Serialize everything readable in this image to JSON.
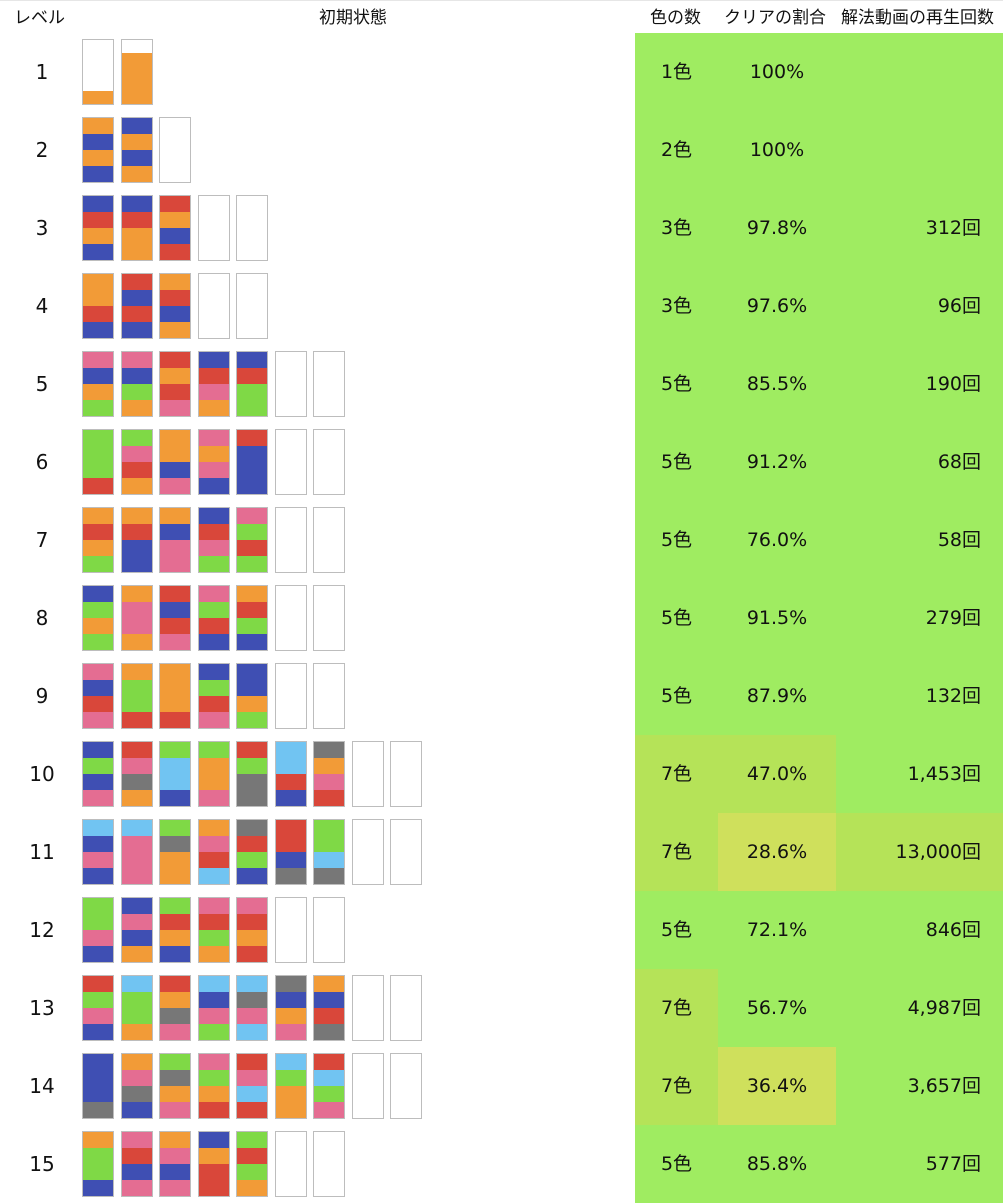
{
  "headers": {
    "level": "レベル",
    "initial_state": "初期状態",
    "colors": "色の数",
    "clear_rate": "クリアの割合",
    "video_plays": "解法動画の再生回数"
  },
  "colors": {
    "O": "#f29b37",
    "B": "#3f4fb3",
    "R": "#d9473a",
    "P": "#e46d92",
    "G": "#7fd946",
    "C": "#71c4f2",
    "Y": "#777777",
    "tube_border": "#bdbdbd",
    "heat_high": "#9fec61",
    "heat_mid": "#b5e358",
    "heat_low": "#cfe05c"
  },
  "rows": [
    {
      "level": "1",
      "colors": "1色",
      "clear_rate": "100%",
      "video_plays": "",
      "tubes": [
        "____O",
        "_OOOO"
      ],
      "heat": [
        "#9fec61",
        "#9fec61",
        "#9fec61"
      ]
    },
    {
      "level": "2",
      "colors": "2色",
      "clear_rate": "100%",
      "video_plays": "",
      "tubes": [
        "OBOB",
        "BOBO",
        ""
      ],
      "heat": [
        "#9fec61",
        "#9fec61",
        "#9fec61"
      ]
    },
    {
      "level": "3",
      "colors": "3色",
      "clear_rate": "97.8%",
      "video_plays": "312回",
      "tubes": [
        "BROB",
        "BROO",
        "ROBR",
        "",
        ""
      ],
      "heat": [
        "#9fec61",
        "#9fec61",
        "#9fec61"
      ]
    },
    {
      "level": "4",
      "colors": "3色",
      "clear_rate": "97.6%",
      "video_plays": "96回",
      "tubes": [
        "OORB",
        "RBRB",
        "ORBO",
        "",
        ""
      ],
      "heat": [
        "#9fec61",
        "#9fec61",
        "#9fec61"
      ]
    },
    {
      "level": "5",
      "colors": "5色",
      "clear_rate": "85.5%",
      "video_plays": "190回",
      "tubes": [
        "PBOG",
        "PBGO",
        "RORP",
        "BRPO",
        "BRGG",
        "",
        ""
      ],
      "heat": [
        "#9fec61",
        "#9fec61",
        "#9fec61"
      ]
    },
    {
      "level": "6",
      "colors": "5色",
      "clear_rate": "91.2%",
      "video_plays": "68回",
      "tubes": [
        "GGGR",
        "GPRO",
        "OOBP",
        "POPB",
        "RBBB",
        "",
        ""
      ],
      "heat": [
        "#9fec61",
        "#9fec61",
        "#9fec61"
      ]
    },
    {
      "level": "7",
      "colors": "5色",
      "clear_rate": "76.0%",
      "video_plays": "58回",
      "tubes": [
        "OROG",
        "ORBB",
        "OBPP",
        "BRPG",
        "PGRG",
        "",
        ""
      ],
      "heat": [
        "#9fec61",
        "#9fec61",
        "#9fec61"
      ]
    },
    {
      "level": "8",
      "colors": "5色",
      "clear_rate": "91.5%",
      "video_plays": "279回",
      "tubes": [
        "BGOG",
        "OPPO",
        "RBRP",
        "PGRB",
        "ORGB",
        "",
        ""
      ],
      "heat": [
        "#9fec61",
        "#9fec61",
        "#9fec61"
      ]
    },
    {
      "level": "9",
      "colors": "5色",
      "clear_rate": "87.9%",
      "video_plays": "132回",
      "tubes": [
        "PBRP",
        "OGGR",
        "OOOR",
        "BGRP",
        "BBOG",
        "",
        ""
      ],
      "heat": [
        "#9fec61",
        "#9fec61",
        "#9fec61"
      ]
    },
    {
      "level": "10",
      "colors": "7色",
      "clear_rate": "47.0%",
      "video_plays": "1,453回",
      "tubes": [
        "BGBP",
        "RPYO",
        "GCCB",
        "GOOP",
        "RGYY",
        "CCRB",
        "YOPR",
        "",
        ""
      ],
      "heat": [
        "#b5e358",
        "#b5e358",
        "#9fec61"
      ]
    },
    {
      "level": "11",
      "colors": "7色",
      "clear_rate": "28.6%",
      "video_plays": "13,000回",
      "tubes": [
        "CBPB",
        "CPPP",
        "GYOO",
        "OPRC",
        "YRGB",
        "RRBY",
        "GGCY",
        "",
        ""
      ],
      "heat": [
        "#b5e358",
        "#cfe05c",
        "#b5e358"
      ]
    },
    {
      "level": "12",
      "colors": "5色",
      "clear_rate": "72.1%",
      "video_plays": "846回",
      "tubes": [
        "GGPB",
        "BPBO",
        "GROB",
        "PRGO",
        "PROR",
        "",
        ""
      ],
      "heat": [
        "#9fec61",
        "#9fec61",
        "#9fec61"
      ]
    },
    {
      "level": "13",
      "colors": "7色",
      "clear_rate": "56.7%",
      "video_plays": "4,987回",
      "tubes": [
        "RGPB",
        "CGGO",
        "ROYP",
        "CBPG",
        "CYPC",
        "YBOP",
        "OBRY",
        "",
        ""
      ],
      "heat": [
        "#b5e358",
        "#9fec61",
        "#9fec61"
      ]
    },
    {
      "level": "14",
      "colors": "7色",
      "clear_rate": "36.4%",
      "video_plays": "3,657回",
      "tubes": [
        "BBBY",
        "OPYB",
        "GYOP",
        "PGOR",
        "RPCR",
        "CGOO",
        "RCGP",
        "",
        ""
      ],
      "heat": [
        "#b5e358",
        "#cfe05c",
        "#9fec61"
      ]
    },
    {
      "level": "15",
      "colors": "5色",
      "clear_rate": "85.8%",
      "video_plays": "577回",
      "tubes": [
        "OGGB",
        "PRBP",
        "OPBP",
        "BORR",
        "GRGO",
        "",
        ""
      ],
      "heat": [
        "#9fec61",
        "#9fec61",
        "#9fec61"
      ]
    }
  ]
}
